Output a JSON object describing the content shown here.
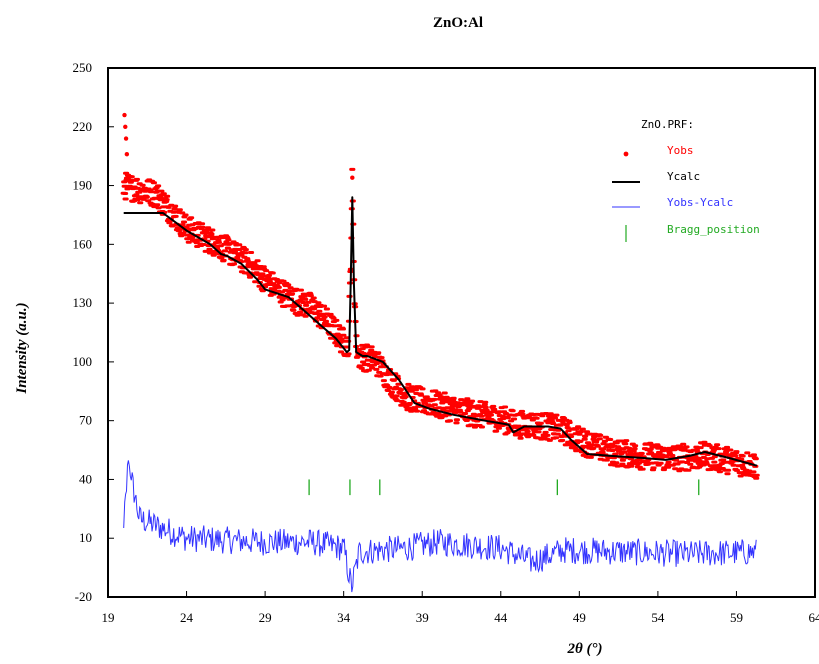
{
  "chart_data": {
    "type": "line",
    "title": "ZnO:Al",
    "xlabel": "2θ (°)",
    "ylabel": "Intensity (a.u.)",
    "xlim": [
      19,
      64
    ],
    "ylim": [
      -20,
      250
    ],
    "x_ticks": [
      "19",
      "24",
      "29",
      "34",
      "39",
      "44",
      "49",
      "54",
      "59",
      "64"
    ],
    "y_ticks": [
      "-20",
      "10",
      "40",
      "70",
      "100",
      "130",
      "160",
      "190",
      "220",
      "250"
    ],
    "grid": false,
    "legend": {
      "position": "top-right",
      "title": "ZnO.PRF:",
      "entries": [
        "Yobs",
        "Ycalc",
        "Yobs-Ycalc",
        "Bragg_position"
      ]
    },
    "colors": {
      "yobs": "#ff0000",
      "ycalc": "#000000",
      "diff": "#3333ff",
      "bragg": "#22aa22"
    },
    "series": [
      {
        "name": "Ycalc",
        "x": [
          20.0,
          22.5,
          24.0,
          25.5,
          26.2,
          26.6,
          27.5,
          28.5,
          29.0,
          30.5,
          31.5,
          32.5,
          33.5,
          34.2,
          34.35,
          34.45,
          34.55,
          34.65,
          34.8,
          35.2,
          35.5,
          36.5,
          37.5,
          38.5,
          39.5,
          41.0,
          43.0,
          44.5,
          44.8,
          45.5,
          47.0,
          47.8,
          48.5,
          49.5,
          51.0,
          53.0,
          54.5,
          56.0,
          57.0,
          58.5,
          60.3
        ],
        "y": [
          176,
          176,
          167,
          160,
          155,
          154,
          150,
          142,
          137,
          133,
          126,
          119,
          112,
          105,
          106,
          140,
          184,
          140,
          105,
          103,
          103,
          100,
          91,
          79,
          76,
          73,
          70,
          68,
          64,
          67,
          67,
          66,
          60,
          53,
          52,
          51,
          50,
          52,
          54,
          51,
          47
        ]
      },
      {
        "name": "Yobs",
        "x": [
          20.0,
          22.0,
          24.0,
          26.0,
          28.0,
          29.0,
          30.0,
          31.0,
          32.0,
          33.0,
          34.0,
          34.3,
          34.45,
          34.55,
          34.65,
          34.8,
          35.0,
          36.0,
          37.0,
          38.0,
          39.0,
          40.0,
          42.0,
          44.0,
          45.0,
          46.0,
          47.0,
          48.0,
          49.0,
          51.0,
          53.0,
          55.0,
          57.0,
          59.0,
          60.3
        ],
        "y": [
          190,
          186,
          168,
          160,
          150,
          142,
          136,
          131,
          128,
          120,
          110,
          108,
          150,
          192,
          150,
          108,
          103,
          101,
          90,
          82,
          80,
          78,
          74,
          71,
          68,
          68,
          67,
          65,
          60,
          54,
          52,
          51,
          52,
          49,
          47
        ]
      },
      {
        "name": "Yobs-Ycalc",
        "x": [
          20.0,
          20.3,
          21.0,
          24.0,
          29.0,
          32.0,
          34.0,
          34.5,
          35.0,
          38.0,
          40.0,
          44.0,
          46.0,
          48.0,
          52.0,
          56.0,
          60.3
        ],
        "y": [
          15,
          48,
          20,
          10,
          8,
          8,
          5,
          -15,
          3,
          5,
          8,
          5,
          -2,
          4,
          3,
          2,
          3
        ]
      }
    ],
    "bragg_positions": [
      31.8,
      34.4,
      36.3,
      47.6,
      56.6
    ]
  }
}
